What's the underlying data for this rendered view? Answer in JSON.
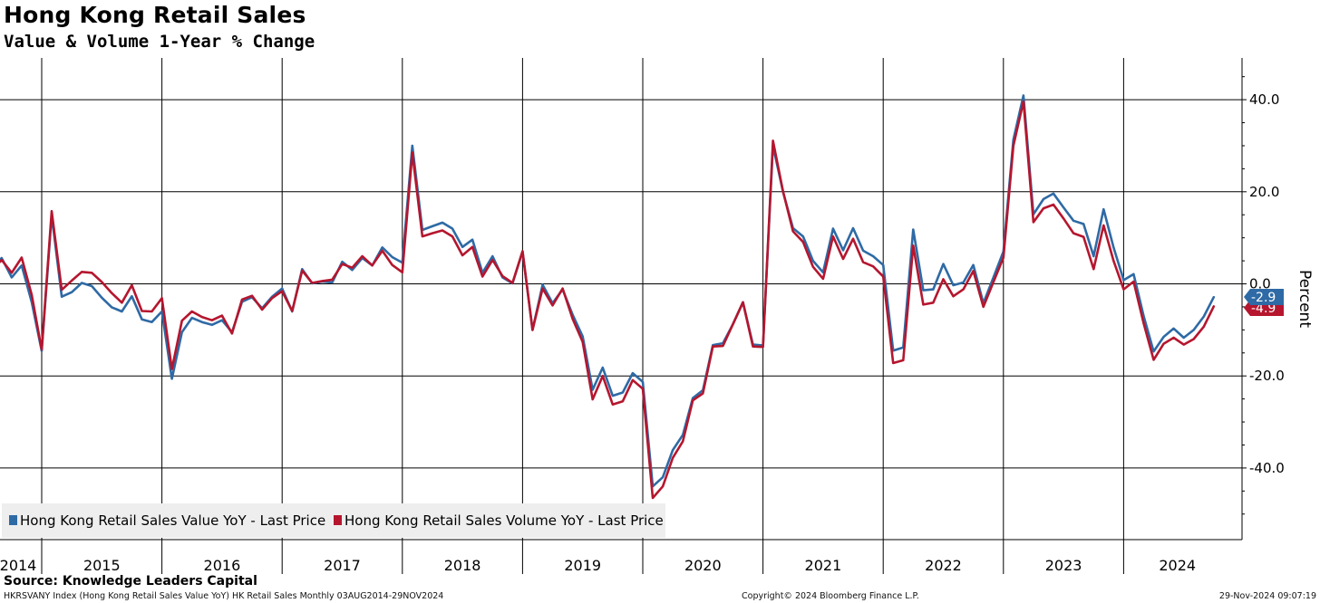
{
  "chart_data": {
    "type": "line",
    "title": "Hong Kong Retail Sales",
    "subtitle": "Value & Volume 1-Year % Change",
    "ylabel": "Percent",
    "xlabel": "",
    "ylim": [
      -55,
      50
    ],
    "yticks": [
      40,
      20,
      0,
      -20,
      -40
    ],
    "ytick_labels": [
      "40.0",
      "20.0",
      "0.0",
      "-20.0",
      "-40.0"
    ],
    "grid": true,
    "legend_position": "bottom-left",
    "x_start": "2014-08",
    "x_end": "2024-11",
    "year_labels": [
      "2014",
      "2015",
      "2016",
      "2017",
      "2018",
      "2019",
      "2020",
      "2021",
      "2022",
      "2023",
      "2024"
    ],
    "series": [
      {
        "name": "Hong Kong Retail Sales Value YoY - Last Price",
        "color": "#2e6aa5",
        "last_value": "-2.9",
        "values": [
          {
            "d": "2014-08",
            "v": 3.5
          },
          {
            "d": "2014-09",
            "v": 5.6
          },
          {
            "d": "2014-10",
            "v": 1.4
          },
          {
            "d": "2014-11",
            "v": 4.0
          },
          {
            "d": "2014-12",
            "v": -4.0
          },
          {
            "d": "2015-01",
            "v": -14.6
          },
          {
            "d": "2015-02",
            "v": 14.9
          },
          {
            "d": "2015-03",
            "v": -2.8
          },
          {
            "d": "2015-04",
            "v": -1.8
          },
          {
            "d": "2015-05",
            "v": 0.2
          },
          {
            "d": "2015-06",
            "v": -0.5
          },
          {
            "d": "2015-07",
            "v": -3.0
          },
          {
            "d": "2015-08",
            "v": -5.1
          },
          {
            "d": "2015-09",
            "v": -6.0
          },
          {
            "d": "2015-10",
            "v": -2.7
          },
          {
            "d": "2015-11",
            "v": -7.7
          },
          {
            "d": "2015-12",
            "v": -8.3
          },
          {
            "d": "2016-01",
            "v": -6.0
          },
          {
            "d": "2016-02",
            "v": -20.6
          },
          {
            "d": "2016-03",
            "v": -10.5
          },
          {
            "d": "2016-04",
            "v": -7.4
          },
          {
            "d": "2016-05",
            "v": -8.3
          },
          {
            "d": "2016-06",
            "v": -8.9
          },
          {
            "d": "2016-07",
            "v": -7.9
          },
          {
            "d": "2016-08",
            "v": -10.5
          },
          {
            "d": "2016-09",
            "v": -3.9
          },
          {
            "d": "2016-10",
            "v": -2.9
          },
          {
            "d": "2016-11",
            "v": -5.3
          },
          {
            "d": "2016-12",
            "v": -2.8
          },
          {
            "d": "2017-01",
            "v": -1.0
          },
          {
            "d": "2017-02",
            "v": -6.0
          },
          {
            "d": "2017-03",
            "v": 3.2
          },
          {
            "d": "2017-04",
            "v": 0.1
          },
          {
            "d": "2017-05",
            "v": 0.5
          },
          {
            "d": "2017-06",
            "v": 0.3
          },
          {
            "d": "2017-07",
            "v": 4.8
          },
          {
            "d": "2017-08",
            "v": 3.0
          },
          {
            "d": "2017-09",
            "v": 5.6
          },
          {
            "d": "2017-10",
            "v": 4.0
          },
          {
            "d": "2017-11",
            "v": 7.9
          },
          {
            "d": "2017-12",
            "v": 5.8
          },
          {
            "d": "2018-01",
            "v": 4.6
          },
          {
            "d": "2018-02",
            "v": 30.0
          },
          {
            "d": "2018-03",
            "v": 11.7
          },
          {
            "d": "2018-04",
            "v": 12.5
          },
          {
            "d": "2018-05",
            "v": 13.3
          },
          {
            "d": "2018-06",
            "v": 12.0
          },
          {
            "d": "2018-07",
            "v": 8.0
          },
          {
            "d": "2018-08",
            "v": 9.6
          },
          {
            "d": "2018-09",
            "v": 2.4
          },
          {
            "d": "2018-10",
            "v": 6.0
          },
          {
            "d": "2018-11",
            "v": 1.4
          },
          {
            "d": "2018-12",
            "v": 0.1
          },
          {
            "d": "2019-01",
            "v": 7.0
          },
          {
            "d": "2019-02",
            "v": -10.0
          },
          {
            "d": "2019-03",
            "v": -0.2
          },
          {
            "d": "2019-04",
            "v": -4.2
          },
          {
            "d": "2019-05",
            "v": -1.2
          },
          {
            "d": "2019-06",
            "v": -6.7
          },
          {
            "d": "2019-07",
            "v": -11.4
          },
          {
            "d": "2019-08",
            "v": -23.0
          },
          {
            "d": "2019-09",
            "v": -18.2
          },
          {
            "d": "2019-10",
            "v": -24.3
          },
          {
            "d": "2019-11",
            "v": -23.6
          },
          {
            "d": "2019-12",
            "v": -19.4
          },
          {
            "d": "2020-01",
            "v": -21.3
          },
          {
            "d": "2020-02",
            "v": -44.0
          },
          {
            "d": "2020-03",
            "v": -42.0
          },
          {
            "d": "2020-04",
            "v": -36.1
          },
          {
            "d": "2020-05",
            "v": -32.8
          },
          {
            "d": "2020-06",
            "v": -24.8
          },
          {
            "d": "2020-07",
            "v": -23.1
          },
          {
            "d": "2020-08",
            "v": -13.3
          },
          {
            "d": "2020-09",
            "v": -12.9
          },
          {
            "d": "2020-10",
            "v": -8.8
          },
          {
            "d": "2020-11",
            "v": -4.0
          },
          {
            "d": "2020-12",
            "v": -13.2
          },
          {
            "d": "2021-01",
            "v": -13.4
          },
          {
            "d": "2021-02",
            "v": 30.0
          },
          {
            "d": "2021-03",
            "v": 20.0
          },
          {
            "d": "2021-04",
            "v": 12.1
          },
          {
            "d": "2021-05",
            "v": 10.3
          },
          {
            "d": "2021-06",
            "v": 5.0
          },
          {
            "d": "2021-07",
            "v": 2.5
          },
          {
            "d": "2021-08",
            "v": 12.0
          },
          {
            "d": "2021-09",
            "v": 7.3
          },
          {
            "d": "2021-10",
            "v": 12.1
          },
          {
            "d": "2021-11",
            "v": 7.2
          },
          {
            "d": "2021-12",
            "v": 6.0
          },
          {
            "d": "2022-01",
            "v": 4.1
          },
          {
            "d": "2022-02",
            "v": -14.5
          },
          {
            "d": "2022-03",
            "v": -13.8
          },
          {
            "d": "2022-04",
            "v": 11.8
          },
          {
            "d": "2022-05",
            "v": -1.4
          },
          {
            "d": "2022-06",
            "v": -1.2
          },
          {
            "d": "2022-07",
            "v": 4.3
          },
          {
            "d": "2022-08",
            "v": -0.3
          },
          {
            "d": "2022-09",
            "v": 0.3
          },
          {
            "d": "2022-10",
            "v": 4.1
          },
          {
            "d": "2022-11",
            "v": -4.2
          },
          {
            "d": "2022-12",
            "v": 1.4
          },
          {
            "d": "2023-01",
            "v": 7.0
          },
          {
            "d": "2023-02",
            "v": 31.3
          },
          {
            "d": "2023-03",
            "v": 40.9
          },
          {
            "d": "2023-04",
            "v": 15.1
          },
          {
            "d": "2023-05",
            "v": 18.4
          },
          {
            "d": "2023-06",
            "v": 19.6
          },
          {
            "d": "2023-07",
            "v": 16.6
          },
          {
            "d": "2023-08",
            "v": 13.7
          },
          {
            "d": "2023-09",
            "v": 13.0
          },
          {
            "d": "2023-10",
            "v": 6.0
          },
          {
            "d": "2023-11",
            "v": 16.2
          },
          {
            "d": "2023-12",
            "v": 7.9
          },
          {
            "d": "2024-01",
            "v": 0.8
          },
          {
            "d": "2024-02",
            "v": 2.1
          },
          {
            "d": "2024-03",
            "v": -7.0
          },
          {
            "d": "2024-04",
            "v": -14.7
          },
          {
            "d": "2024-05",
            "v": -11.5
          },
          {
            "d": "2024-06",
            "v": -9.7
          },
          {
            "d": "2024-07",
            "v": -11.7
          },
          {
            "d": "2024-08",
            "v": -10.0
          },
          {
            "d": "2024-09",
            "v": -7.1
          },
          {
            "d": "2024-10",
            "v": -2.9
          }
        ]
      },
      {
        "name": "Hong Kong Retail Sales Volume YoY - Last Price",
        "color": "#b5162e",
        "last_value": "-4.9",
        "values": [
          {
            "d": "2014-08",
            "v": 2.9
          },
          {
            "d": "2014-09",
            "v": 5.2
          },
          {
            "d": "2014-10",
            "v": 2.4
          },
          {
            "d": "2014-11",
            "v": 5.7
          },
          {
            "d": "2014-12",
            "v": -2.4
          },
          {
            "d": "2015-01",
            "v": -14.3
          },
          {
            "d": "2015-02",
            "v": 15.8
          },
          {
            "d": "2015-03",
            "v": -1.3
          },
          {
            "d": "2015-04",
            "v": 0.7
          },
          {
            "d": "2015-05",
            "v": 2.6
          },
          {
            "d": "2015-06",
            "v": 2.4
          },
          {
            "d": "2015-07",
            "v": 0.4
          },
          {
            "d": "2015-08",
            "v": -2.0
          },
          {
            "d": "2015-09",
            "v": -4.1
          },
          {
            "d": "2015-10",
            "v": -0.3
          },
          {
            "d": "2015-11",
            "v": -5.9
          },
          {
            "d": "2015-12",
            "v": -6.0
          },
          {
            "d": "2016-01",
            "v": -3.1
          },
          {
            "d": "2016-02",
            "v": -18.5
          },
          {
            "d": "2016-03",
            "v": -8.0
          },
          {
            "d": "2016-04",
            "v": -6.0
          },
          {
            "d": "2016-05",
            "v": -7.2
          },
          {
            "d": "2016-06",
            "v": -7.9
          },
          {
            "d": "2016-07",
            "v": -6.9
          },
          {
            "d": "2016-08",
            "v": -10.8
          },
          {
            "d": "2016-09",
            "v": -3.4
          },
          {
            "d": "2016-10",
            "v": -2.6
          },
          {
            "d": "2016-11",
            "v": -5.6
          },
          {
            "d": "2016-12",
            "v": -3.1
          },
          {
            "d": "2017-01",
            "v": -1.6
          },
          {
            "d": "2017-02",
            "v": -5.9
          },
          {
            "d": "2017-03",
            "v": 2.9
          },
          {
            "d": "2017-04",
            "v": 0.2
          },
          {
            "d": "2017-05",
            "v": 0.6
          },
          {
            "d": "2017-06",
            "v": 0.9
          },
          {
            "d": "2017-07",
            "v": 4.3
          },
          {
            "d": "2017-08",
            "v": 3.5
          },
          {
            "d": "2017-09",
            "v": 6.0
          },
          {
            "d": "2017-10",
            "v": 4.0
          },
          {
            "d": "2017-11",
            "v": 7.2
          },
          {
            "d": "2017-12",
            "v": 4.1
          },
          {
            "d": "2018-01",
            "v": 2.5
          },
          {
            "d": "2018-02",
            "v": 28.5
          },
          {
            "d": "2018-03",
            "v": 10.3
          },
          {
            "d": "2018-04",
            "v": 11.0
          },
          {
            "d": "2018-05",
            "v": 11.6
          },
          {
            "d": "2018-06",
            "v": 10.3
          },
          {
            "d": "2018-07",
            "v": 6.2
          },
          {
            "d": "2018-08",
            "v": 8.0
          },
          {
            "d": "2018-09",
            "v": 1.6
          },
          {
            "d": "2018-10",
            "v": 5.2
          },
          {
            "d": "2018-11",
            "v": 1.7
          },
          {
            "d": "2018-12",
            "v": 0.2
          },
          {
            "d": "2019-01",
            "v": 7.1
          },
          {
            "d": "2019-02",
            "v": -10.0
          },
          {
            "d": "2019-03",
            "v": -1.0
          },
          {
            "d": "2019-04",
            "v": -4.7
          },
          {
            "d": "2019-05",
            "v": -1.0
          },
          {
            "d": "2019-06",
            "v": -7.6
          },
          {
            "d": "2019-07",
            "v": -12.6
          },
          {
            "d": "2019-08",
            "v": -25.1
          },
          {
            "d": "2019-09",
            "v": -20.0
          },
          {
            "d": "2019-10",
            "v": -26.2
          },
          {
            "d": "2019-11",
            "v": -25.5
          },
          {
            "d": "2019-12",
            "v": -20.9
          },
          {
            "d": "2020-01",
            "v": -22.8
          },
          {
            "d": "2020-02",
            "v": -46.5
          },
          {
            "d": "2020-03",
            "v": -44.0
          },
          {
            "d": "2020-04",
            "v": -37.8
          },
          {
            "d": "2020-05",
            "v": -34.2
          },
          {
            "d": "2020-06",
            "v": -25.3
          },
          {
            "d": "2020-07",
            "v": -23.8
          },
          {
            "d": "2020-08",
            "v": -13.6
          },
          {
            "d": "2020-09",
            "v": -13.5
          },
          {
            "d": "2020-10",
            "v": -8.8
          },
          {
            "d": "2020-11",
            "v": -4.0
          },
          {
            "d": "2020-12",
            "v": -13.6
          },
          {
            "d": "2021-01",
            "v": -13.7
          },
          {
            "d": "2021-02",
            "v": 31.1
          },
          {
            "d": "2021-03",
            "v": 20.1
          },
          {
            "d": "2021-04",
            "v": 11.4
          },
          {
            "d": "2021-05",
            "v": 9.1
          },
          {
            "d": "2021-06",
            "v": 3.7
          },
          {
            "d": "2021-07",
            "v": 1.1
          },
          {
            "d": "2021-08",
            "v": 10.3
          },
          {
            "d": "2021-09",
            "v": 5.4
          },
          {
            "d": "2021-10",
            "v": 9.8
          },
          {
            "d": "2021-11",
            "v": 4.7
          },
          {
            "d": "2021-12",
            "v": 3.8
          },
          {
            "d": "2022-01",
            "v": 1.6
          },
          {
            "d": "2022-02",
            "v": -17.2
          },
          {
            "d": "2022-03",
            "v": -16.6
          },
          {
            "d": "2022-04",
            "v": 8.3
          },
          {
            "d": "2022-05",
            "v": -4.5
          },
          {
            "d": "2022-06",
            "v": -4.1
          },
          {
            "d": "2022-07",
            "v": 1.0
          },
          {
            "d": "2022-08",
            "v": -2.7
          },
          {
            "d": "2022-09",
            "v": -1.2
          },
          {
            "d": "2022-10",
            "v": 2.8
          },
          {
            "d": "2022-11",
            "v": -5.0
          },
          {
            "d": "2022-12",
            "v": 0.4
          },
          {
            "d": "2023-01",
            "v": 5.7
          },
          {
            "d": "2023-02",
            "v": 30.0
          },
          {
            "d": "2023-03",
            "v": 39.6
          },
          {
            "d": "2023-04",
            "v": 13.4
          },
          {
            "d": "2023-05",
            "v": 16.4
          },
          {
            "d": "2023-06",
            "v": 17.2
          },
          {
            "d": "2023-07",
            "v": 14.2
          },
          {
            "d": "2023-08",
            "v": 11.0
          },
          {
            "d": "2023-09",
            "v": 10.2
          },
          {
            "d": "2023-10",
            "v": 3.2
          },
          {
            "d": "2023-11",
            "v": 12.7
          },
          {
            "d": "2023-12",
            "v": 5.0
          },
          {
            "d": "2024-01",
            "v": -1.2
          },
          {
            "d": "2024-02",
            "v": 0.5
          },
          {
            "d": "2024-03",
            "v": -8.6
          },
          {
            "d": "2024-04",
            "v": -16.5
          },
          {
            "d": "2024-05",
            "v": -13.0
          },
          {
            "d": "2024-06",
            "v": -11.7
          },
          {
            "d": "2024-07",
            "v": -13.2
          },
          {
            "d": "2024-08",
            "v": -12.0
          },
          {
            "d": "2024-09",
            "v": -9.3
          },
          {
            "d": "2024-10",
            "v": -4.9
          }
        ]
      }
    ]
  },
  "footer": {
    "source": "Source: Knowledge Leaders Capital",
    "left": "HKRSVANY Index (Hong Kong Retail Sales Value YoY) HK Retail Sales  Monthly 03AUG2014-29NOV2024",
    "center": "Copyright© 2024 Bloomberg Finance L.P.",
    "right": "29-Nov-2024 09:07:19"
  }
}
